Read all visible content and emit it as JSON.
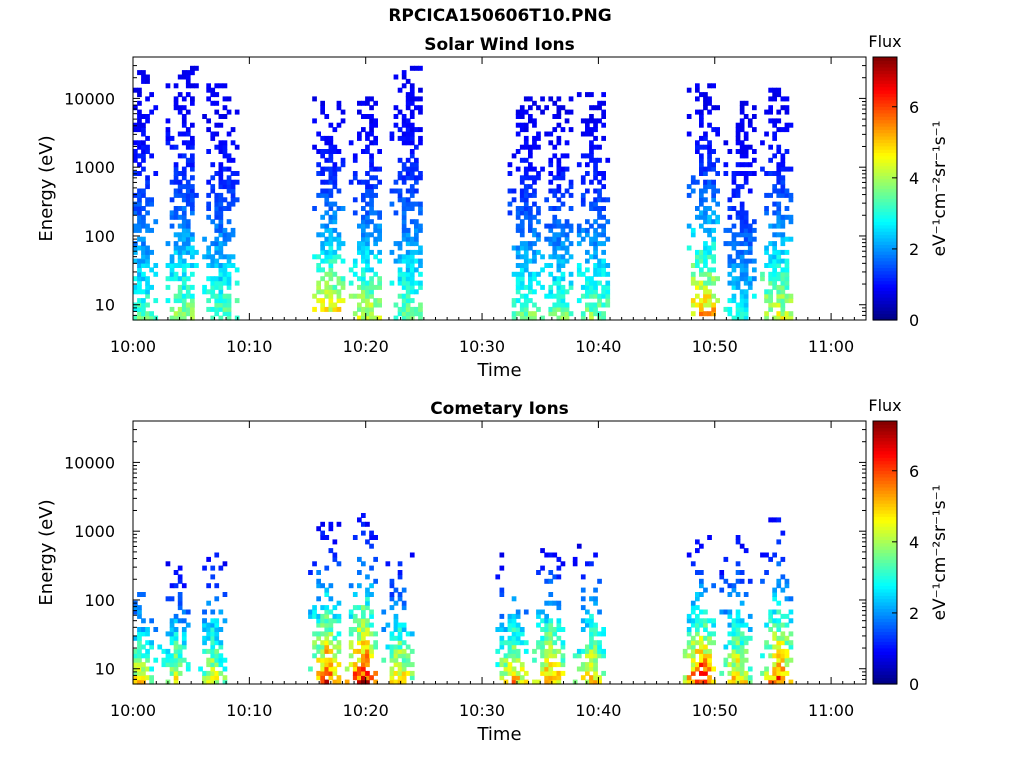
{
  "figure": {
    "filename": "RPCICA150606T10.PNG"
  },
  "colorbar": {
    "label": "Flux",
    "units": "eV⁻¹cm⁻²sr⁻¹s⁻¹",
    "ticks": [
      "0",
      "2",
      "4",
      "6"
    ],
    "range": [
      0,
      7.4
    ],
    "colormap": "jet"
  },
  "axis_common": {
    "xlabel": "Time",
    "ylabel": "Energy (eV)",
    "xticks": [
      "10:00",
      "10:10",
      "10:20",
      "10:30",
      "10:40",
      "10:50",
      "11:00"
    ],
    "yticks": [
      "10",
      "100",
      "1000",
      "10000"
    ],
    "ylog": true,
    "ylim": [
      6,
      40000
    ],
    "xlim_minutes": [
      0,
      63
    ]
  },
  "chart_data": [
    {
      "type": "heatmap",
      "title": "Solar Wind Ions",
      "xlabel": "Time",
      "ylabel": "Energy (eV)",
      "x_range": [
        "10:00",
        "11:03"
      ],
      "y_range_eV": [
        6,
        40000
      ],
      "y_scale": "log",
      "z_label": "Flux",
      "z_range": [
        0,
        7.4
      ],
      "bursts": [
        {
          "t": 0.6,
          "lo": 6,
          "hi": 26000,
          "peak": 3.4
        },
        {
          "t": 4.2,
          "lo": 6,
          "hi": 29000,
          "peak": 3.8
        },
        {
          "t": 7.6,
          "lo": 6,
          "hi": 17000,
          "peak": 3.6
        },
        {
          "t": 16.8,
          "lo": 8,
          "hi": 11000,
          "peak": 4.6
        },
        {
          "t": 20.0,
          "lo": 6,
          "hi": 11000,
          "peak": 4.4
        },
        {
          "t": 23.6,
          "lo": 6,
          "hi": 32000,
          "peak": 3.6
        },
        {
          "t": 33.6,
          "lo": 6,
          "hi": 11000,
          "peak": 3.7
        },
        {
          "t": 36.6,
          "lo": 6,
          "hi": 11000,
          "peak": 3.6
        },
        {
          "t": 39.8,
          "lo": 6,
          "hi": 12000,
          "peak": 3.8
        },
        {
          "t": 49.0,
          "lo": 7,
          "hi": 16000,
          "peak": 5.2
        },
        {
          "t": 52.3,
          "lo": 6,
          "hi": 9000,
          "peak": 3.0
        },
        {
          "t": 55.5,
          "lo": 6,
          "hi": 15000,
          "peak": 4.4
        }
      ]
    },
    {
      "type": "heatmap",
      "title": "Cometary Ions",
      "xlabel": "Time",
      "ylabel": "Energy (eV)",
      "x_range": [
        "10:00",
        "11:03"
      ],
      "y_range_eV": [
        6,
        40000
      ],
      "y_scale": "log",
      "z_label": "Flux",
      "z_range": [
        0,
        7.4
      ],
      "bursts": [
        {
          "t": 0.6,
          "lo": 6,
          "hi": 450,
          "peak": 5.0
        },
        {
          "t": 3.8,
          "lo": 6,
          "hi": 400,
          "peak": 5.0
        },
        {
          "t": 7.0,
          "lo": 6,
          "hi": 700,
          "peak": 4.8
        },
        {
          "t": 16.5,
          "lo": 6,
          "hi": 1600,
          "peak": 6.4
        },
        {
          "t": 19.8,
          "lo": 6,
          "hi": 2100,
          "peak": 7.0
        },
        {
          "t": 23.0,
          "lo": 6,
          "hi": 600,
          "peak": 5.4
        },
        {
          "t": 32.8,
          "lo": 6,
          "hi": 500,
          "peak": 5.6
        },
        {
          "t": 36.0,
          "lo": 6,
          "hi": 800,
          "peak": 6.0
        },
        {
          "t": 39.2,
          "lo": 6,
          "hi": 800,
          "peak": 5.4
        },
        {
          "t": 48.8,
          "lo": 6,
          "hi": 900,
          "peak": 6.8
        },
        {
          "t": 52.0,
          "lo": 6,
          "hi": 1000,
          "peak": 5.4
        },
        {
          "t": 55.4,
          "lo": 6,
          "hi": 1500,
          "peak": 6.4
        }
      ]
    }
  ]
}
